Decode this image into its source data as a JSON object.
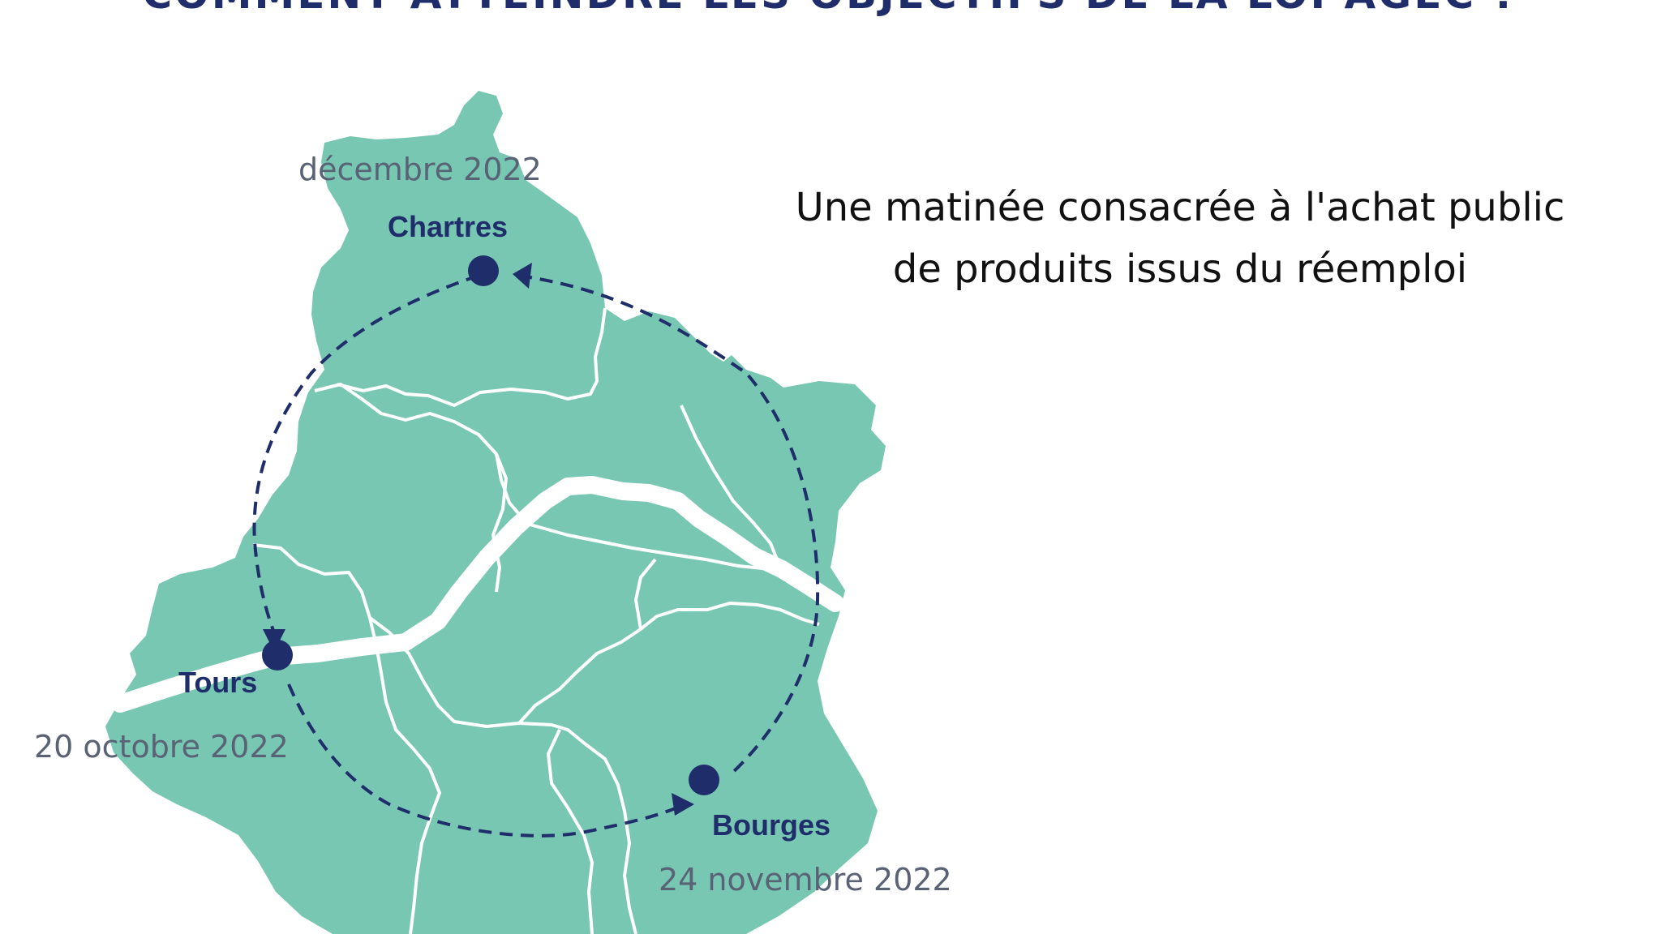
{
  "heading": "COMMENT ATTEINDRE LES OBJECTIFS DE LA LOI AGEC ?",
  "tagline": {
    "line1": "Une matinée consacrée à l'achat public",
    "line2": "de produits issus du réemploi"
  },
  "stops": [
    {
      "city": "Chartres",
      "date": "décembre 2022"
    },
    {
      "city": "Tours",
      "date": "20 octobre 2022"
    },
    {
      "city": "Bourges",
      "date": "24 novembre 2022"
    }
  ],
  "colors": {
    "map_fill": "#78c7b2",
    "border": "#ffffff",
    "navy": "#1f2d6b",
    "date_gray": "#5a6275"
  }
}
